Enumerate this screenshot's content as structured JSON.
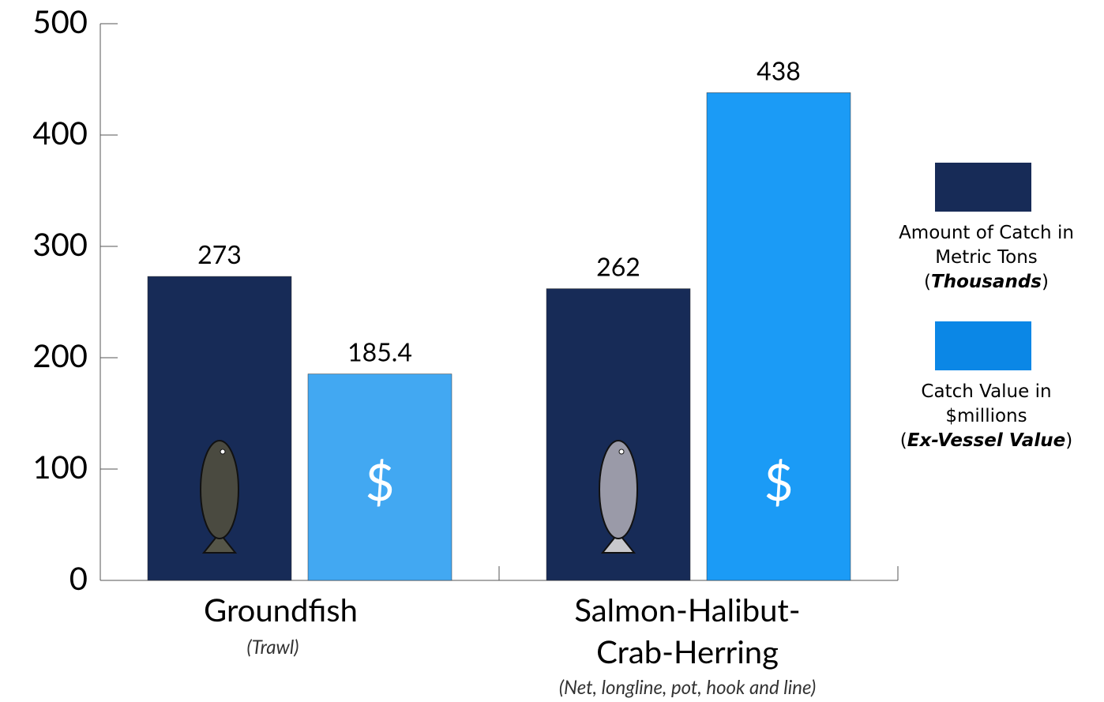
{
  "chart_data": {
    "type": "bar",
    "categories": [
      "Groundfish",
      "Salmon-Halibut-Crab-Herring"
    ],
    "category_notes": [
      "(Trawl)",
      "(Net, longline, pot, hook and line)"
    ],
    "series": [
      {
        "name": "Amount of Catch in Metric Tons (Thousands)",
        "color": "#172b57",
        "values": [
          273,
          262
        ]
      },
      {
        "name": "Catch Value in $millions (Ex-Vessel Value)",
        "color": "#0b87e6",
        "colors": [
          "#42a8f2",
          "#1b9bf6"
        ],
        "icon": "$",
        "values": [
          185.4,
          438
        ]
      }
    ],
    "ylim": [
      0,
      500
    ],
    "yticks": [
      0,
      100,
      200,
      300,
      400,
      500
    ],
    "grid": false,
    "legend": "right"
  }
}
